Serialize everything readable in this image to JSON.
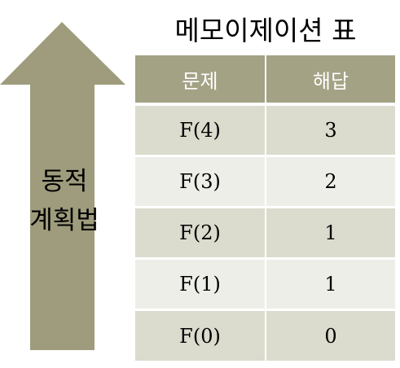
{
  "title": "메모이제이션 표",
  "arrow": {
    "label_line1": "동적",
    "label_line2": "계획법",
    "color": "#9e9c7c"
  },
  "table": {
    "headers": [
      "문제",
      "해답"
    ],
    "rows": [
      {
        "problem": "F(4)",
        "answer": "3"
      },
      {
        "problem": "F(3)",
        "answer": "2"
      },
      {
        "problem": "F(2)",
        "answer": "1"
      },
      {
        "problem": "F(1)",
        "answer": "1"
      },
      {
        "problem": "F(0)",
        "answer": "0"
      }
    ],
    "header_color": "#a4a285",
    "row_color_odd": "#dbdbce",
    "row_color_even": "#eeeee9"
  }
}
